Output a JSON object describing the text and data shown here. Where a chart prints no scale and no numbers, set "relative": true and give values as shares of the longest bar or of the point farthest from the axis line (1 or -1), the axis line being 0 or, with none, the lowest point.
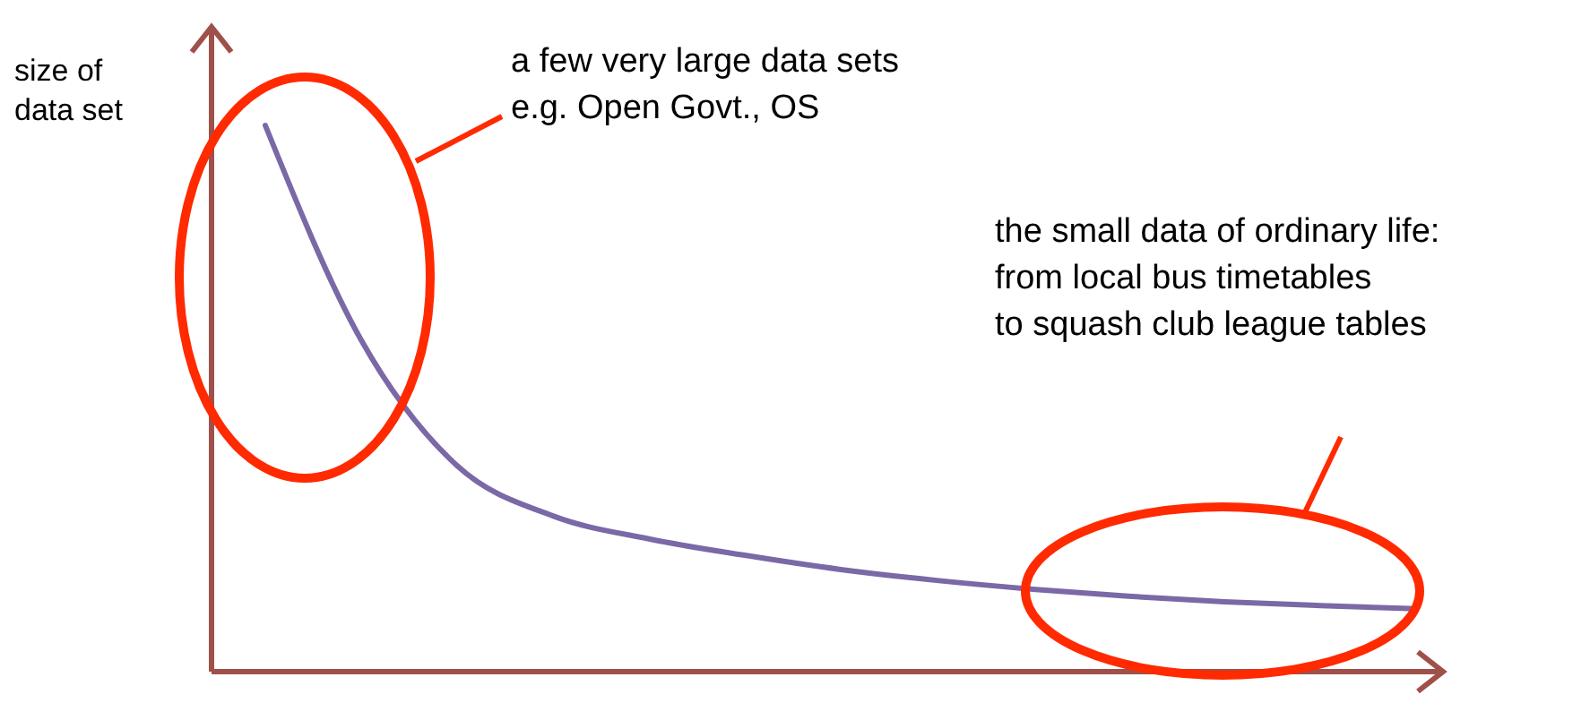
{
  "chart_data": {
    "type": "line",
    "relative": true,
    "ylabel": "size of data set",
    "categories": [
      null,
      null,
      null,
      null,
      null,
      null,
      null,
      null,
      null,
      null,
      null,
      null,
      null
    ],
    "series": [
      {
        "color": "#7b68a6",
        "values": [
          1,
          0.607,
          0.377,
          0.285,
          0.243,
          0.213,
          0.187,
          0.167,
          0.151,
          0.138,
          0.128,
          0.121,
          0.115
        ]
      }
    ],
    "marker": "none",
    "line_style": "solid",
    "annotations": [
      "a few very large data sets\ne.g. Open Govt., OS",
      "the small data of ordinary life:\nfrom local bus timetables\nto squash club league tables"
    ]
  }
}
